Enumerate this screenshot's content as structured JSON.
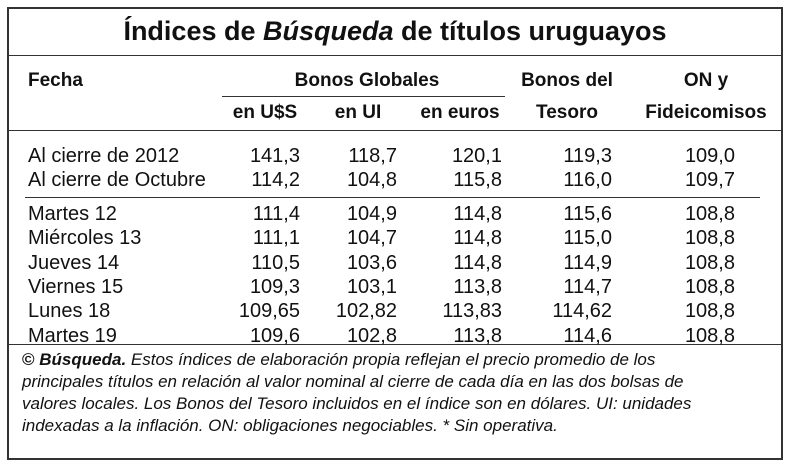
{
  "title": {
    "before": "Índices de ",
    "emphasis": "Búsqueda",
    "after": " de títulos uruguayos"
  },
  "header": {
    "date": "Fecha",
    "group": "Bonos Globales",
    "subcolumns": [
      "en U$S",
      "en UI",
      "en euros"
    ],
    "treasury": [
      "Bonos del",
      "Tesoro"
    ],
    "on": [
      "ON y",
      "Fideicomisos"
    ]
  },
  "table": {
    "groups": [
      {
        "rows": [
          {
            "label": "Al cierre de 2012",
            "values": [
              "141,3",
              "118,7",
              "120,1",
              "119,3",
              "109,0"
            ]
          },
          {
            "label": "Al cierre de Octubre",
            "values": [
              "114,2",
              "104,8",
              "115,8",
              "116,0",
              "109,7"
            ]
          }
        ]
      },
      {
        "rows": [
          {
            "label": "Martes 12",
            "values": [
              "111,4",
              "104,9",
              "114,8",
              "115,6",
              "108,8"
            ]
          },
          {
            "label": "Miércoles 13",
            "values": [
              "111,1",
              "104,7",
              "114,8",
              "115,0",
              "108,8"
            ]
          },
          {
            "label": "Jueves 14",
            "values": [
              "110,5",
              "103,6",
              "114,8",
              "114,9",
              "108,8"
            ]
          },
          {
            "label": "Viernes 15",
            "values": [
              "109,3",
              "103,1",
              "113,8",
              "114,7",
              "108,8"
            ]
          },
          {
            "label": "Lunes 18",
            "values": [
              "109,65",
              "102,82",
              "113,83",
              "114,62",
              "108,8"
            ]
          },
          {
            "label": "Martes 19",
            "values": [
              "109,6",
              "102,8",
              "113,8",
              "114,6",
              "108,8"
            ]
          }
        ]
      }
    ]
  },
  "footnote": {
    "symbol": "©",
    "source": "Búsqueda.",
    "lines": [
      "Estos índices de elaboración propia reflejan el precio promedio de los",
      "principales títulos en relación al valor nominal al cierre de cada día en las dos bolsas de",
      "valores locales. Los Bonos del Tesoro incluidos en el índice son en dólares. UI: unidades",
      "indexadas a la inflación. ON: obligaciones negociables. * Sin operativa."
    ]
  }
}
